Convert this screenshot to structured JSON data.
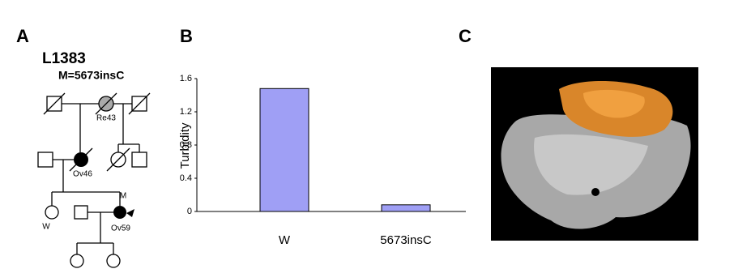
{
  "panels": {
    "a": {
      "label": "A",
      "family": "L1383",
      "mutation": "M=5673insC",
      "individuals": [
        "Re43",
        "Ov46",
        "W",
        "M",
        "Ov59"
      ]
    },
    "b": {
      "label": "B"
    },
    "c": {
      "label": "C"
    }
  },
  "chart_data": {
    "type": "bar",
    "ylabel": "Turbidity",
    "categories": [
      "W",
      "5673insC"
    ],
    "values": [
      1.48,
      0.08
    ],
    "color": "#9f9ff5",
    "ylim": [
      0,
      1.6
    ],
    "yticks": [
      0,
      0.4,
      0.8,
      1.2,
      1.6
    ],
    "grid": false
  }
}
